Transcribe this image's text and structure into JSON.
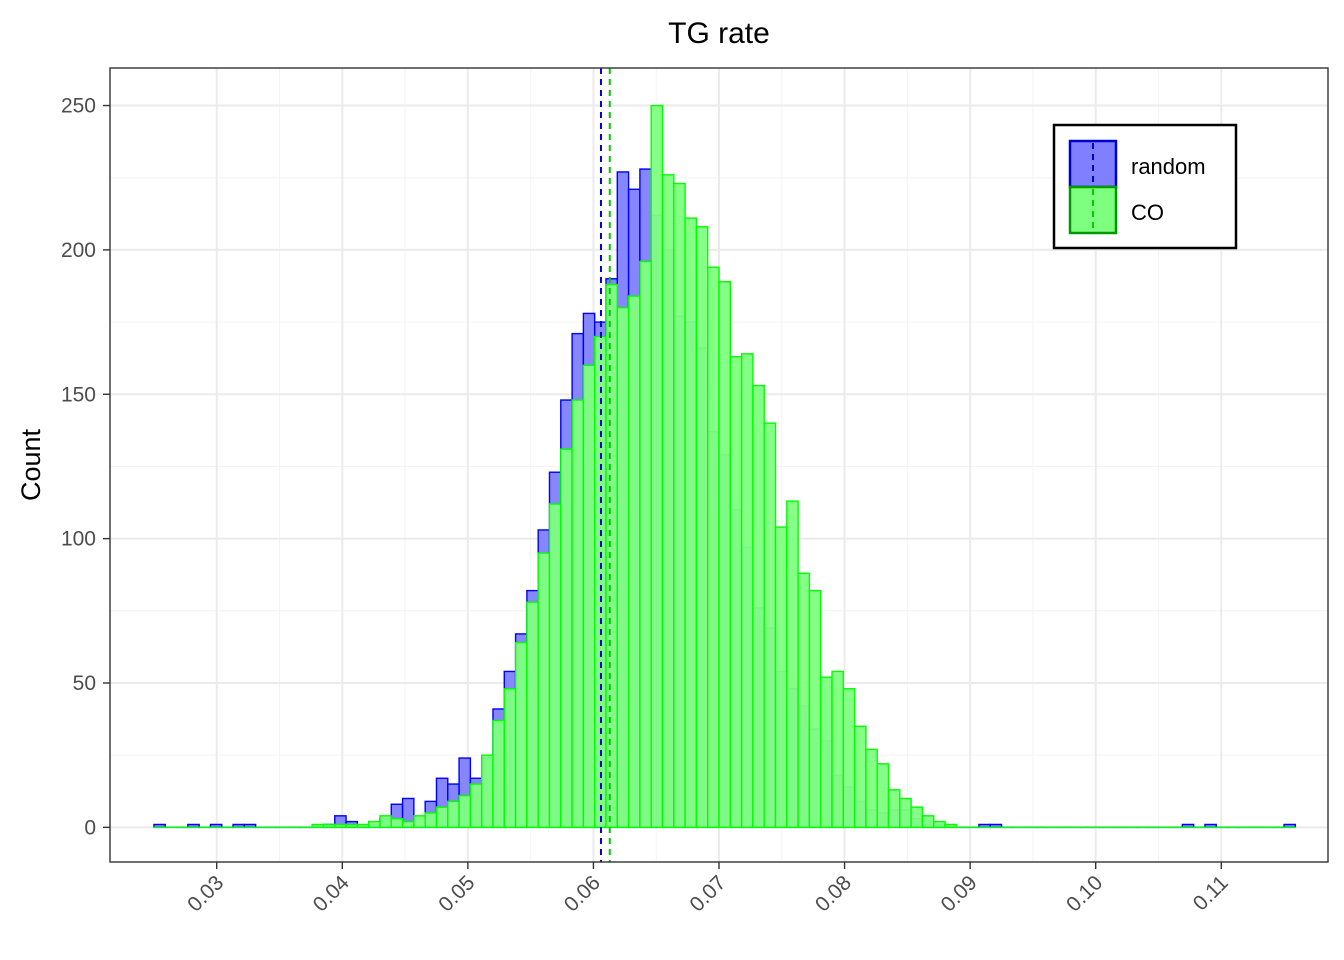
{
  "chart_data": {
    "type": "bar",
    "subtype": "overlapping histogram",
    "title": "TG rate",
    "xlabel": "",
    "ylabel": "Count",
    "xlim": [
      0.0215,
      0.1185
    ],
    "ylim": [
      -12,
      263
    ],
    "x_ticks": [
      0.03,
      0.04,
      0.05,
      0.06,
      0.07,
      0.08,
      0.09,
      0.1,
      0.11
    ],
    "x_tick_labels": [
      "0.03",
      "0.04",
      "0.05",
      "0.06",
      "0.07",
      "0.08",
      "0.09",
      "0.10",
      "0.11"
    ],
    "y_ticks": [
      0,
      50,
      100,
      150,
      200,
      250
    ],
    "y_tick_labels": [
      "0",
      "50",
      "100",
      "150",
      "200",
      "250"
    ],
    "grid": true,
    "legend_position": "top-right",
    "bin_start": 0.025,
    "bin_width": 0.0009,
    "series": [
      {
        "name": "random",
        "fill": "#7f7fff",
        "outline": "#0000ff",
        "mean": 0.0606,
        "counts": [
          1,
          0,
          0,
          1,
          0,
          1,
          0,
          1,
          1,
          0,
          0,
          0,
          0,
          0,
          0,
          1,
          4,
          2,
          0,
          1,
          3,
          8,
          10,
          0,
          9,
          17,
          15,
          24,
          17,
          24,
          41,
          54,
          67,
          82,
          103,
          123,
          148,
          171,
          178,
          175,
          190,
          227,
          221,
          228,
          212,
          200,
          177,
          175,
          166,
          137,
          129,
          110,
          97,
          76,
          69,
          54,
          48,
          42,
          34,
          30,
          18,
          14,
          9,
          6,
          5,
          6,
          6,
          3,
          1,
          1,
          0,
          0,
          0,
          1,
          1,
          0,
          0,
          0,
          0,
          0,
          0,
          0,
          0,
          0,
          0,
          0,
          0,
          0,
          0,
          0,
          0,
          1,
          0,
          1,
          0,
          0,
          0,
          0,
          0,
          0,
          1
        ]
      },
      {
        "name": "CO",
        "fill": "#7fff7f",
        "outline": "#00ff00",
        "mean": 0.0613,
        "counts": [
          0,
          0,
          0,
          0,
          0,
          0,
          0,
          0,
          0,
          0,
          0,
          0,
          0,
          0,
          1,
          1,
          1,
          1,
          1,
          2,
          4,
          3,
          2,
          4,
          5,
          7,
          9,
          11,
          15,
          25,
          37,
          48,
          64,
          78,
          95,
          112,
          131,
          148,
          160,
          170,
          188,
          180,
          184,
          196,
          250,
          226,
          223,
          211,
          208,
          194,
          189,
          163,
          164,
          153,
          140,
          104,
          113,
          88,
          82,
          52,
          54,
          48,
          35,
          27,
          22,
          13,
          10,
          7,
          4,
          2,
          1,
          0,
          0,
          0,
          0,
          0,
          0,
          0,
          0,
          0,
          0,
          0,
          0,
          0,
          0,
          0,
          0,
          0,
          0,
          0,
          0,
          0,
          0,
          0,
          0,
          0,
          0,
          0,
          0,
          0,
          0
        ]
      }
    ],
    "legend": [
      {
        "label": "random",
        "fill": "#7f7fff",
        "outline": "#0000ff",
        "mean_line": "#0000cc"
      },
      {
        "label": "CO",
        "fill": "#7fff7f",
        "outline": "#00ff00",
        "mean_line": "#00cc00"
      }
    ]
  }
}
